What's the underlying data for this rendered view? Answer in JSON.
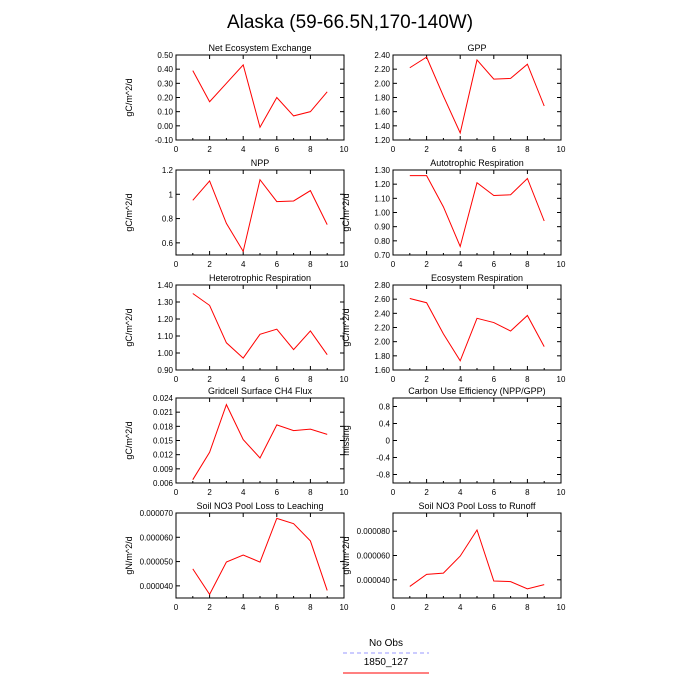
{
  "page_title": "Alaska (59-66.5N,170-140W)",
  "legend": [
    {
      "label": "No Obs",
      "color": "#9999ff",
      "dash": "dashed"
    },
    {
      "label": "1850_127",
      "color": "#ff0000",
      "dash": "solid"
    }
  ],
  "chart_data": [
    {
      "type": "line",
      "title": "Net Ecosystem Exchange",
      "ylabel": "gC/m^2/d",
      "xlim": [
        0,
        10
      ],
      "x_ticks": [
        "0",
        "2",
        "4",
        "6",
        "8",
        "10"
      ],
      "ylim": [
        -0.1,
        0.5
      ],
      "y_ticks": [
        "-0.10",
        "0.00",
        "0.10",
        "0.20",
        "0.30",
        "0.40",
        "0.50"
      ],
      "x": [
        1,
        2,
        3,
        4,
        5,
        6,
        7,
        8,
        9
      ],
      "series": [
        {
          "name": "1850_127",
          "color": "#ff0000",
          "values": [
            0.39,
            0.17,
            0.3,
            0.43,
            -0.01,
            0.2,
            0.07,
            0.1,
            0.24
          ]
        }
      ]
    },
    {
      "type": "line",
      "title": "GPP",
      "ylabel": "",
      "xlim": [
        0,
        10
      ],
      "x_ticks": [
        "0",
        "2",
        "4",
        "6",
        "8",
        "10"
      ],
      "ylim": [
        1.2,
        2.4
      ],
      "y_ticks": [
        "1.20",
        "1.40",
        "1.60",
        "1.80",
        "2.00",
        "2.20",
        "2.40"
      ],
      "x": [
        1,
        2,
        3,
        4,
        5,
        6,
        7,
        8,
        9
      ],
      "series": [
        {
          "name": "1850_127",
          "color": "#ff0000",
          "values": [
            2.22,
            2.37,
            1.82,
            1.3,
            2.33,
            2.06,
            2.07,
            2.27,
            1.68
          ]
        }
      ]
    },
    {
      "type": "line",
      "title": "NPP",
      "ylabel": "gC/m^2/d",
      "xlim": [
        0,
        10
      ],
      "x_ticks": [
        "0",
        "2",
        "4",
        "6",
        "8",
        "10"
      ],
      "ylim": [
        0.5,
        1.2
      ],
      "y_ticks": [
        "0.6",
        "0.8",
        "1",
        "1.2"
      ],
      "y_tick_values": [
        0.6,
        0.8,
        1.0,
        1.2
      ],
      "x": [
        1,
        2,
        3,
        4,
        5,
        6,
        7,
        8,
        9
      ],
      "series": [
        {
          "name": "1850_127",
          "color": "#ff0000",
          "values": [
            0.95,
            1.11,
            0.76,
            0.53,
            1.12,
            0.94,
            0.945,
            1.03,
            0.75
          ]
        }
      ]
    },
    {
      "type": "line",
      "title": "Autotrophic Respiration",
      "ylabel": "gC/m^2/d",
      "xlim": [
        0,
        10
      ],
      "x_ticks": [
        "0",
        "2",
        "4",
        "6",
        "8",
        "10"
      ],
      "ylim": [
        0.7,
        1.3
      ],
      "y_ticks": [
        "0.70",
        "0.80",
        "0.90",
        "1.00",
        "1.10",
        "1.20",
        "1.30"
      ],
      "x": [
        1,
        2,
        3,
        4,
        5,
        6,
        7,
        8,
        9
      ],
      "series": [
        {
          "name": "1850_127",
          "color": "#ff0000",
          "values": [
            1.26,
            1.26,
            1.04,
            0.76,
            1.21,
            1.12,
            1.125,
            1.24,
            0.94
          ]
        }
      ]
    },
    {
      "type": "line",
      "title": "Heterotrophic Respiration",
      "ylabel": "gC/m^2/d",
      "xlim": [
        0,
        10
      ],
      "x_ticks": [
        "0",
        "2",
        "4",
        "6",
        "8",
        "10"
      ],
      "ylim": [
        0.9,
        1.4
      ],
      "y_ticks": [
        "0.90",
        "1.00",
        "1.10",
        "1.20",
        "1.30",
        "1.40"
      ],
      "x": [
        1,
        2,
        3,
        4,
        5,
        6,
        7,
        8,
        9
      ],
      "series": [
        {
          "name": "1850_127",
          "color": "#ff0000",
          "values": [
            1.35,
            1.28,
            1.06,
            0.97,
            1.11,
            1.14,
            1.02,
            1.13,
            0.99
          ]
        }
      ]
    },
    {
      "type": "line",
      "title": "Ecosystem Respiration",
      "ylabel": "gC/m^2/d",
      "xlim": [
        0,
        10
      ],
      "x_ticks": [
        "0",
        "2",
        "4",
        "6",
        "8",
        "10"
      ],
      "ylim": [
        1.6,
        2.8
      ],
      "y_ticks": [
        "1.60",
        "1.80",
        "2.00",
        "2.20",
        "2.40",
        "2.60",
        "2.80"
      ],
      "x": [
        1,
        2,
        3,
        4,
        5,
        6,
        7,
        8,
        9
      ],
      "series": [
        {
          "name": "1850_127",
          "color": "#ff0000",
          "values": [
            2.61,
            2.55,
            2.11,
            1.73,
            2.33,
            2.27,
            2.15,
            2.37,
            1.93
          ]
        }
      ]
    },
    {
      "type": "line",
      "title": "Gridcell Surface CH4 Flux",
      "ylabel": "gC/m^2/d",
      "xlim": [
        0,
        10
      ],
      "x_ticks": [
        "0",
        "2",
        "4",
        "6",
        "8",
        "10"
      ],
      "ylim": [
        0.006,
        0.024
      ],
      "y_ticks": [
        "0.006",
        "0.009",
        "0.012",
        "0.015",
        "0.018",
        "0.021",
        "0.024"
      ],
      "x": [
        1,
        2,
        3,
        4,
        5,
        6,
        7,
        8,
        9
      ],
      "series": [
        {
          "name": "1850_127",
          "color": "#ff0000",
          "values": [
            0.0067,
            0.0125,
            0.0226,
            0.0152,
            0.0113,
            0.0183,
            0.0171,
            0.0174,
            0.0163
          ]
        }
      ]
    },
    {
      "type": "line",
      "title": "Carbon Use Efficiency (NPP/GPP)",
      "ylabel": "missing",
      "xlim": [
        0,
        10
      ],
      "x_ticks": [
        "0",
        "2",
        "4",
        "6",
        "8",
        "10"
      ],
      "ylim": [
        -1.0,
        1.0
      ],
      "y_ticks": [
        "-0.8",
        "-0.4",
        "0",
        "0.4",
        "0.8"
      ],
      "y_tick_values": [
        -0.8,
        -0.4,
        0,
        0.4,
        0.8
      ],
      "x": [],
      "series": []
    },
    {
      "type": "line",
      "title": "Soil NO3 Pool Loss to Leaching",
      "ylabel": "gN/m^2/d",
      "xlim": [
        0,
        10
      ],
      "x_ticks": [
        "0",
        "2",
        "4",
        "6",
        "8",
        "10"
      ],
      "ylim": [
        3.5e-05,
        7e-05
      ],
      "y_ticks": [
        "0.000040",
        "0.000050",
        "0.000060",
        "0.000070"
      ],
      "y_tick_values": [
        4e-05,
        5e-05,
        6e-05,
        7e-05
      ],
      "x": [
        1,
        2,
        3,
        4,
        5,
        6,
        7,
        8,
        9
      ],
      "series": [
        {
          "name": "1850_127",
          "color": "#ff0000",
          "values": [
            4.7e-05,
            3.65e-05,
            4.98e-05,
            5.27e-05,
            4.98e-05,
            6.78e-05,
            6.56e-05,
            5.85e-05,
            3.81e-05
          ]
        }
      ]
    },
    {
      "type": "line",
      "title": "Soil NO3 Pool Loss to Runoff",
      "ylabel": "gN/m^2/d",
      "xlim": [
        0,
        10
      ],
      "x_ticks": [
        "0",
        "2",
        "4",
        "6",
        "8",
        "10"
      ],
      "ylim": [
        2.5e-05,
        9.5e-05
      ],
      "y_ticks": [
        "0.000040",
        "0.000060",
        "0.000080"
      ],
      "y_tick_values": [
        4e-05,
        6e-05,
        8e-05
      ],
      "x": [
        1,
        2,
        3,
        4,
        5,
        6,
        7,
        8,
        9
      ],
      "series": [
        {
          "name": "1850_127",
          "color": "#ff0000",
          "values": [
            3.45e-05,
            4.45e-05,
            4.55e-05,
            5.95e-05,
            8.1e-05,
            3.9e-05,
            3.85e-05,
            3.25e-05,
            3.6e-05
          ]
        }
      ]
    }
  ]
}
